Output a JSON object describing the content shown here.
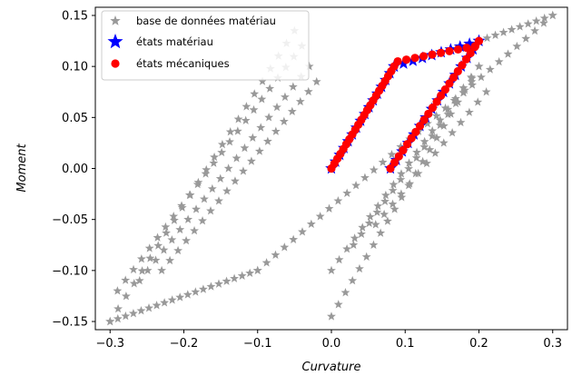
{
  "chart_data": {
    "type": "scatter",
    "title": "",
    "xlabel": "Curvature",
    "ylabel": "Moment",
    "xlim": [
      -0.32,
      0.32
    ],
    "ylim": [
      -0.158,
      0.158
    ],
    "xticks": [
      -0.3,
      -0.2,
      -0.1,
      0.0,
      0.1,
      0.2,
      0.3
    ],
    "xtick_labels": [
      "−0.3",
      "−0.2",
      "−0.1",
      "0.0",
      "0.1",
      "0.2",
      "0.3"
    ],
    "yticks": [
      -0.15,
      -0.1,
      -0.05,
      0.0,
      0.05,
      0.1,
      0.15
    ],
    "ytick_labels": [
      "−0.15",
      "−0.10",
      "−0.05",
      "0.00",
      "0.05",
      "0.10",
      "0.15"
    ],
    "grid": false,
    "legend_position": "top-left",
    "series": [
      {
        "name": "base de données matériau",
        "marker": "star",
        "color": "#999999",
        "segments": [
          {
            "x": [
              -0.3,
              -0.1
            ],
            "y": [
              -0.15,
              -0.1
            ],
            "n": 20
          },
          {
            "x": [
              -0.3,
              -0.05
            ],
            "y": [
              -0.15,
              0.135
            ],
            "n": 24
          },
          {
            "x": [
              -0.29,
              -0.04
            ],
            "y": [
              -0.12,
              0.12
            ],
            "n": 24
          },
          {
            "x": [
              -0.26,
              -0.03
            ],
            "y": [
              -0.11,
              0.1
            ],
            "n": 22
          },
          {
            "x": [
              -0.23,
              -0.02
            ],
            "y": [
              -0.1,
              0.085
            ],
            "n": 20
          },
          {
            "x": [
              -0.1,
              0.3
            ],
            "y": [
              -0.1,
              0.15
            ],
            "n": 34
          },
          {
            "x": [
              0.0,
              0.2
            ],
            "y": [
              -0.145,
              0.1
            ],
            "n": 22
          },
          {
            "x": [
              0.0,
              0.2
            ],
            "y": [
              -0.1,
              0.1
            ],
            "n": 20
          },
          {
            "x": [
              0.03,
              0.19
            ],
            "y": [
              -0.075,
              0.085
            ],
            "n": 16
          },
          {
            "x": [
              0.06,
              0.21
            ],
            "y": [
              -0.055,
              0.075
            ],
            "n": 14
          },
          {
            "x": [
              0.2,
              0.3
            ],
            "y": [
              0.125,
              0.15
            ],
            "n": 10
          }
        ]
      },
      {
        "name": "états matériau",
        "marker": "star",
        "color": "#0000ff",
        "segments": [
          {
            "x": [
              0.0,
              0.085
            ],
            "y": [
              0.0,
              0.1
            ],
            "n": 16
          },
          {
            "x": [
              0.085,
              0.2
            ],
            "y": [
              0.1,
              0.125
            ],
            "n": 10
          },
          {
            "x": [
              0.08,
              0.2
            ],
            "y": [
              0.0,
              0.125
            ],
            "n": 16
          }
        ]
      },
      {
        "name": "états mécaniques",
        "marker": "circle",
        "color": "#ff0000",
        "segments": [
          {
            "x": [
              0.0,
              0.085
            ],
            "y": [
              0.0,
              0.1
            ],
            "n": 22
          },
          {
            "x": [
              0.09,
              0.195
            ],
            "y": [
              0.105,
              0.12
            ],
            "n": 10
          },
          {
            "x": [
              0.08,
              0.2
            ],
            "y": [
              0.0,
              0.125
            ],
            "n": 22
          }
        ]
      }
    ]
  }
}
